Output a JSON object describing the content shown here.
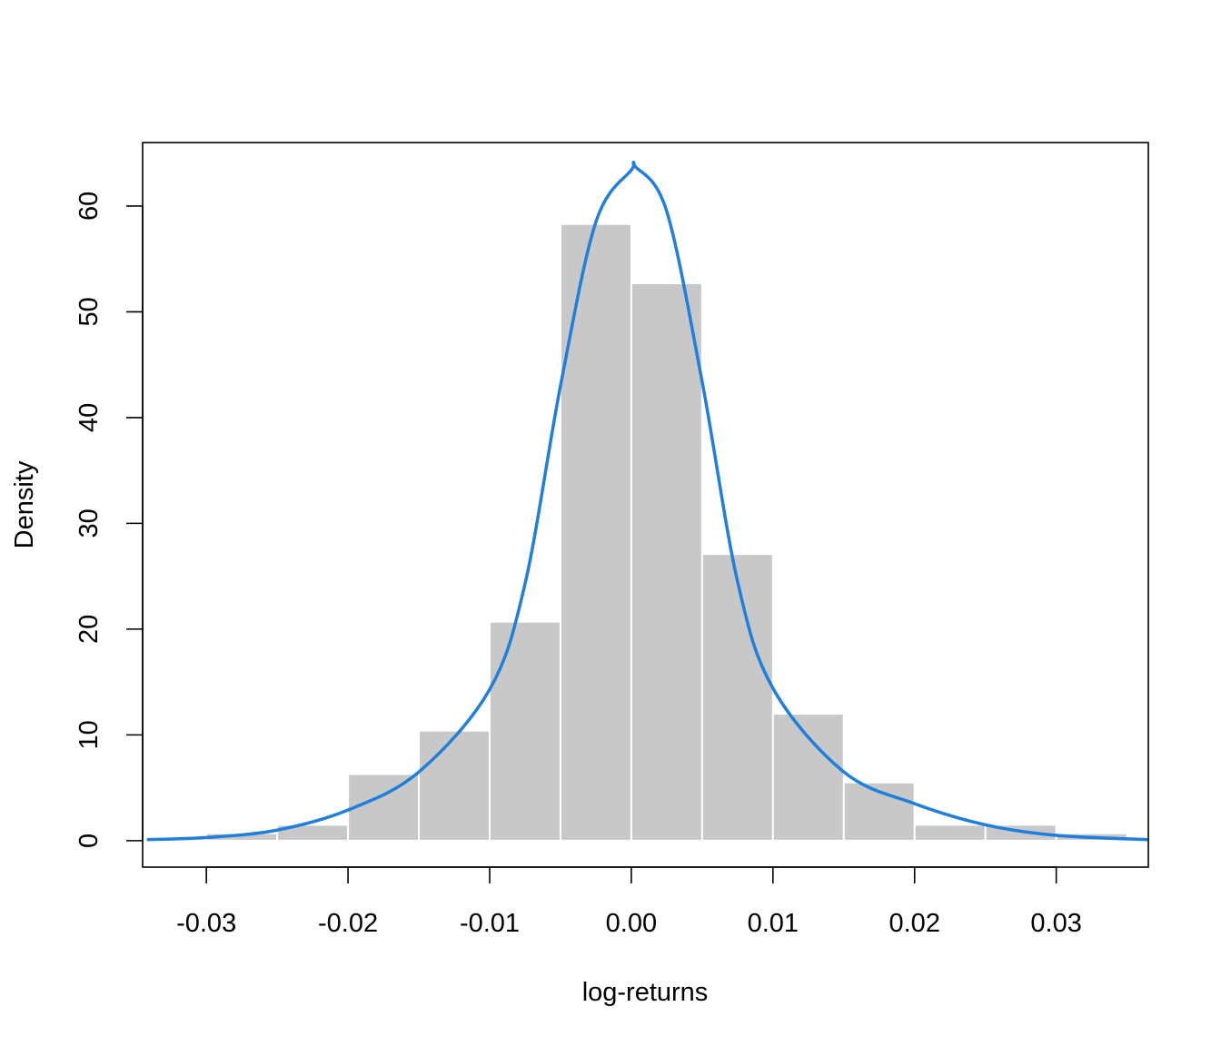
{
  "chart_data": {
    "type": "bar",
    "subtype": "histogram-with-density-curve",
    "title": "",
    "xlabel": "log-returns",
    "ylabel": "Density",
    "xlim": [
      -0.0345,
      0.0365
    ],
    "ylim": [
      -2.5,
      66
    ],
    "x_ticks": [
      -0.03,
      -0.02,
      -0.01,
      0.0,
      0.01,
      0.02,
      0.03
    ],
    "x_tick_labels": [
      "-0.03",
      "-0.02",
      "-0.01",
      "0.00",
      "0.01",
      "0.02",
      "0.03"
    ],
    "y_ticks": [
      0,
      10,
      20,
      30,
      40,
      50,
      60
    ],
    "y_tick_labels": [
      "0",
      "10",
      "20",
      "30",
      "40",
      "50",
      "60"
    ],
    "bin_edges": [
      -0.03,
      -0.025,
      -0.02,
      -0.015,
      -0.01,
      -0.005,
      0.0,
      0.005,
      0.01,
      0.015,
      0.02,
      0.025,
      0.03,
      0.035
    ],
    "bin_densities": [
      0.7,
      1.5,
      6.3,
      10.4,
      20.7,
      58.3,
      52.7,
      27.1,
      12.0,
      5.5,
      1.5,
      1.5,
      0.7
    ],
    "bar_color": "#c8c8c8",
    "bar_border": "#ffffff",
    "density_curve": {
      "color": "#1f7fdb",
      "x": [
        -0.0342,
        -0.03,
        -0.025,
        -0.02,
        -0.015,
        -0.01,
        -0.0075,
        -0.005,
        -0.0025,
        0.0,
        0.0003,
        0.0025,
        0.005,
        0.0075,
        0.01,
        0.015,
        0.02,
        0.025,
        0.03,
        0.0365
      ],
      "y": [
        0.1,
        0.3,
        1.0,
        2.9,
        6.5,
        14.3,
        24.3,
        43.0,
        58.5,
        63.4,
        63.7,
        59.5,
        43.4,
        24.5,
        14.4,
        6.5,
        3.5,
        1.5,
        0.5,
        0.1
      ]
    },
    "grid": false,
    "legend": "none"
  }
}
